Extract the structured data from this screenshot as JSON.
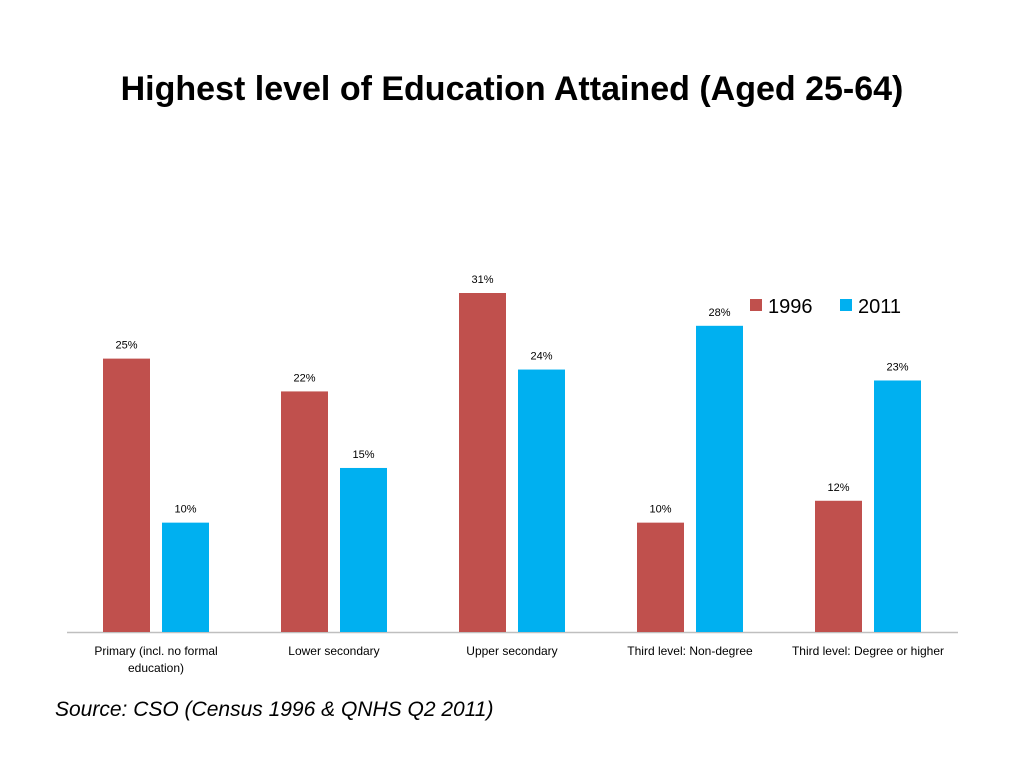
{
  "chart_data": {
    "type": "bar",
    "title": "Highest level of Education Attained (Aged 25-64)",
    "categories": [
      [
        "Primary (incl. no formal",
        "education)"
      ],
      [
        "Lower secondary"
      ],
      [
        "Upper secondary"
      ],
      [
        "Third level: Non-degree"
      ],
      [
        "Third level: Degree or higher"
      ]
    ],
    "series": [
      {
        "name": "1996",
        "color": "#c0504d",
        "values": [
          25,
          22,
          31,
          10,
          12
        ],
        "labels": [
          "25%",
          "22%",
          "31%",
          "10%",
          "12%"
        ]
      },
      {
        "name": "2011",
        "color": "#00b0f0",
        "values": [
          10,
          15,
          24,
          28,
          23
        ],
        "labels": [
          "10%",
          "15%",
          "24%",
          "28%",
          "23%"
        ]
      }
    ],
    "ylim": [
      0,
      31
    ],
    "xlabel": "",
    "ylabel": "",
    "legend_position": "top-right",
    "grid": false
  },
  "source": "Source: CSO (Census 1996 & QNHS Q2 2011)"
}
